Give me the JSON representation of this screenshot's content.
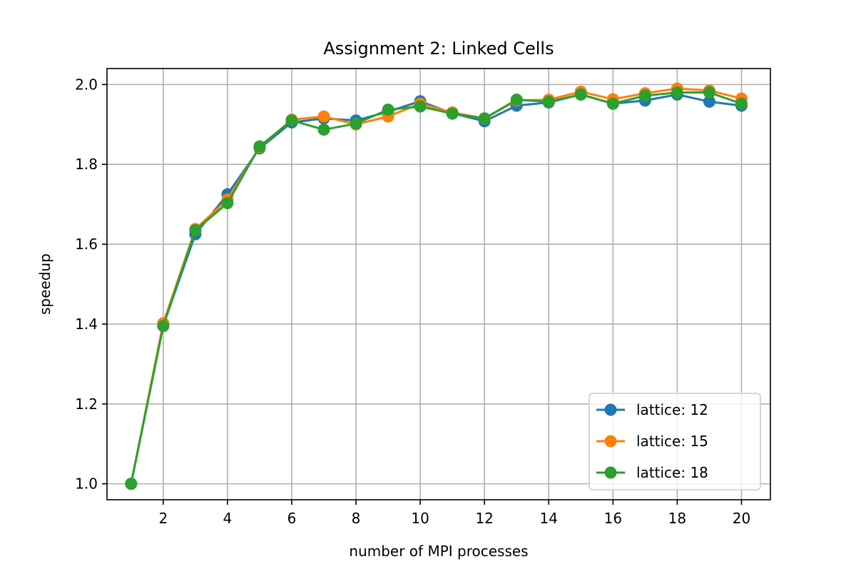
{
  "chart_data": {
    "type": "line",
    "title": "Assignment 2: Linked Cells",
    "xlabel": "number of MPI processes",
    "ylabel": "speedup",
    "xlim": [
      0.25,
      20.9
    ],
    "ylim": [
      0.96,
      2.04
    ],
    "x_ticks": [
      2,
      4,
      6,
      8,
      10,
      12,
      14,
      16,
      18,
      20
    ],
    "y_ticks": [
      1.0,
      1.2,
      1.4,
      1.6,
      1.8,
      2.0
    ],
    "grid": true,
    "legend_position": "lower-right",
    "marker": "circle",
    "x": [
      1,
      2,
      3,
      4,
      5,
      6,
      7,
      8,
      9,
      10,
      11,
      12,
      13,
      14,
      15,
      16,
      17,
      18,
      19,
      20
    ],
    "series": [
      {
        "name": "lattice: 12",
        "color": "#1f77b4",
        "values": [
          1.0,
          1.397,
          1.625,
          1.725,
          1.84,
          1.905,
          1.915,
          1.91,
          1.932,
          1.958,
          1.928,
          1.908,
          1.947,
          1.955,
          1.975,
          1.952,
          1.96,
          1.975,
          1.957,
          1.947
        ]
      },
      {
        "name": "lattice: 15",
        "color": "#ff7f0e",
        "values": [
          1.0,
          1.402,
          1.638,
          1.712,
          1.843,
          1.912,
          1.92,
          1.9,
          1.92,
          1.952,
          1.93,
          1.915,
          1.96,
          1.962,
          1.982,
          1.963,
          1.978,
          1.99,
          1.985,
          1.965
        ]
      },
      {
        "name": "lattice: 18",
        "color": "#2ca02c",
        "values": [
          1.0,
          1.395,
          1.635,
          1.703,
          1.845,
          1.91,
          1.887,
          1.902,
          1.937,
          1.945,
          1.927,
          1.915,
          1.962,
          1.957,
          1.975,
          1.952,
          1.972,
          1.98,
          1.98,
          1.952
        ]
      }
    ]
  }
}
